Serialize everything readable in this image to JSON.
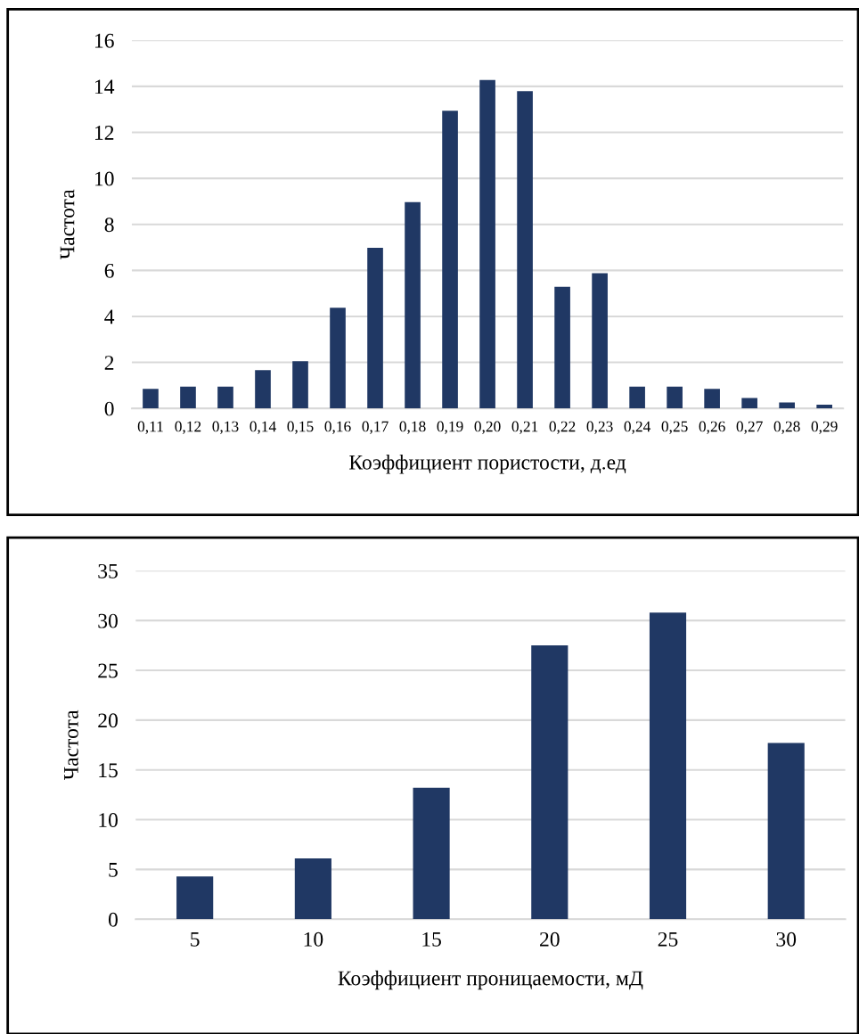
{
  "chart_data": [
    {
      "type": "bar",
      "xlabel": "Коэффициент пористости, д.ед",
      "ylabel": "Частота",
      "categories": [
        "0,11",
        "0,12",
        "0,13",
        "0,14",
        "0,15",
        "0,16",
        "0,17",
        "0,18",
        "0,19",
        "0,20",
        "0,21",
        "0,22",
        "0,23",
        "0,24",
        "0,25",
        "0,26",
        "0,27",
        "0,28",
        "0,29"
      ],
      "values": [
        0.85,
        0.95,
        0.95,
        1.66,
        2.05,
        4.38,
        6.98,
        8.97,
        12.94,
        14.28,
        13.79,
        5.29,
        5.88,
        0.95,
        0.95,
        0.85,
        0.45,
        0.26,
        0.16
      ],
      "color": "#203864",
      "ylim": [
        0,
        16
      ],
      "yticks": [
        0,
        2,
        4,
        6,
        8,
        10,
        12,
        14,
        16
      ],
      "grid": "y",
      "legend": false
    },
    {
      "type": "bar",
      "xlabel": "Коэффициент проницаемости, мД",
      "ylabel": "Частота",
      "categories": [
        "5",
        "10",
        "15",
        "20",
        "25",
        "30"
      ],
      "values": [
        4.3,
        6.1,
        13.2,
        27.5,
        30.8,
        17.7
      ],
      "color": "#203864",
      "ylim": [
        0,
        35
      ],
      "yticks": [
        0,
        5,
        10,
        15,
        20,
        25,
        30,
        35
      ],
      "grid": "y",
      "legend": false
    }
  ]
}
